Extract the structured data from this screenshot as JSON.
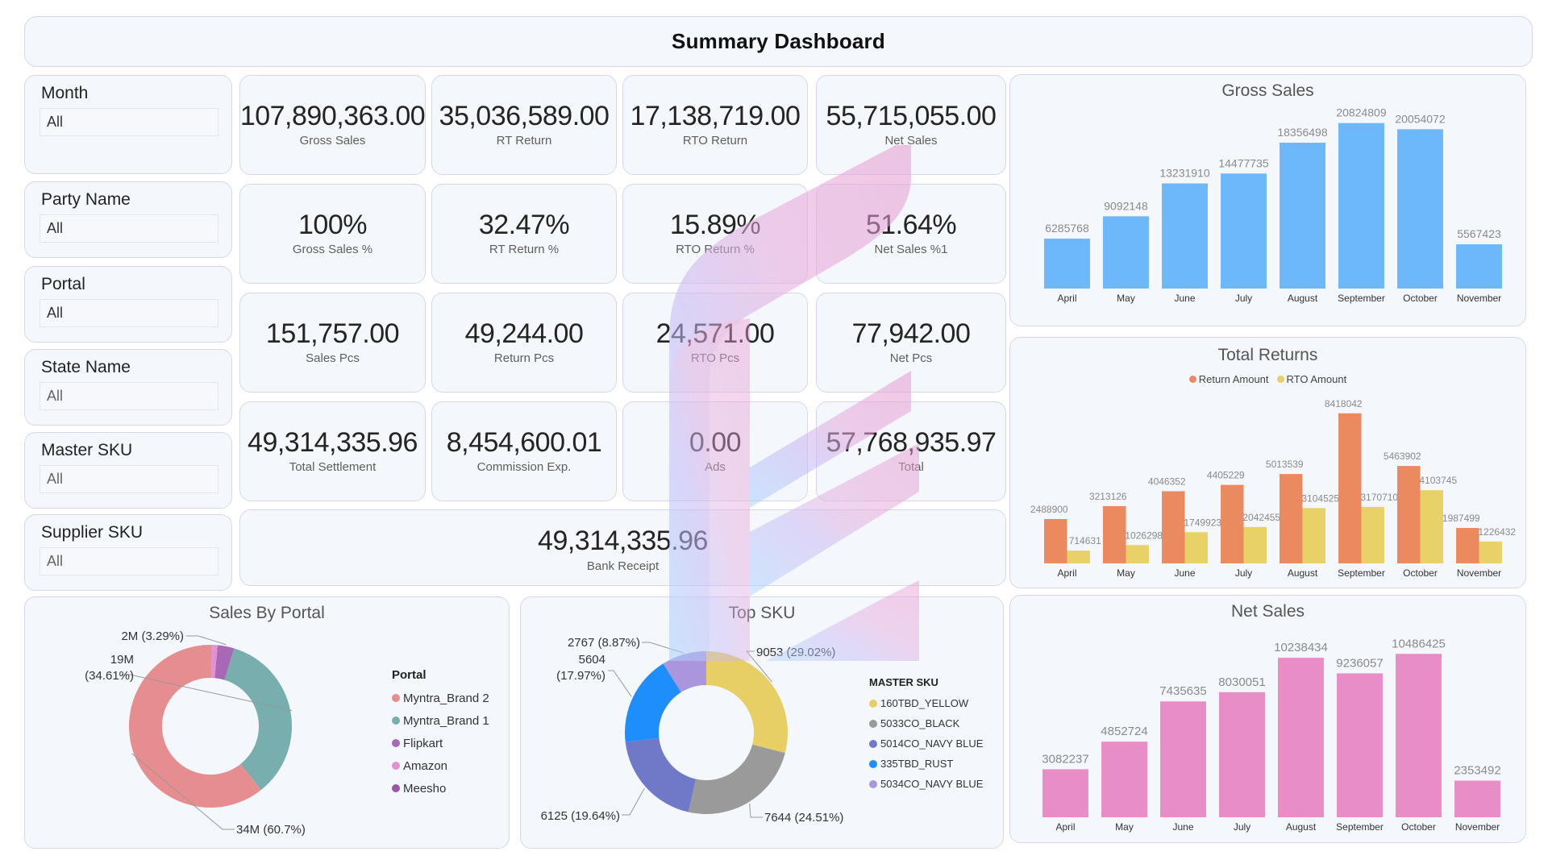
{
  "header": {
    "title": "Summary Dashboard"
  },
  "filters": [
    {
      "label": "Month",
      "value": "All"
    },
    {
      "label": "Party Name",
      "value": "All"
    },
    {
      "label": "Portal",
      "value": "All"
    },
    {
      "label": "State Name",
      "value": "All"
    },
    {
      "label": "Master SKU",
      "value": "All"
    },
    {
      "label": "Supplier SKU",
      "value": "All"
    }
  ],
  "kpis": [
    {
      "value": "107,890,363.00",
      "label": "Gross Sales"
    },
    {
      "value": "35,036,589.00",
      "label": "RT Return"
    },
    {
      "value": "17,138,719.00",
      "label": "RTO Return"
    },
    {
      "value": "55,715,055.00",
      "label": "Net Sales"
    },
    {
      "value": "100%",
      "label": "Gross Sales %"
    },
    {
      "value": "32.47%",
      "label": "RT Return %"
    },
    {
      "value": "15.89%",
      "label": "RTO Return %"
    },
    {
      "value": "51.64%",
      "label": "Net Sales %1"
    },
    {
      "value": "151,757.00",
      "label": "Sales Pcs"
    },
    {
      "value": "49,244.00",
      "label": "Return Pcs"
    },
    {
      "value": "24,571.00",
      "label": "RTO Pcs"
    },
    {
      "value": "77,942.00",
      "label": "Net Pcs"
    },
    {
      "value": "49,314,335.96",
      "label": "Total Settlement"
    },
    {
      "value": "8,454,600.01",
      "label": "Commission Exp."
    },
    {
      "value": "0.00",
      "label": "Ads"
    },
    {
      "value": "57,768,935.97",
      "label": "Total"
    }
  ],
  "bank_receipt": {
    "value": "49,314,335.96",
    "label": "Bank Receipt"
  },
  "chart_data": [
    {
      "id": "gross_sales",
      "type": "bar",
      "title": "Gross Sales",
      "categories": [
        "April",
        "May",
        "June",
        "July",
        "August",
        "September",
        "October",
        "November"
      ],
      "values": [
        6285768,
        9092148,
        13231910,
        14477735,
        18356498,
        20824809,
        20054072,
        5567423
      ],
      "color": "#6cb8fb",
      "xlabel": "",
      "ylabel": "",
      "ylim": [
        0,
        21000000
      ],
      "grid": false
    },
    {
      "id": "total_returns",
      "type": "bar",
      "title": "Total Returns",
      "categories": [
        "April",
        "May",
        "June",
        "July",
        "August",
        "September",
        "October",
        "November"
      ],
      "series": [
        {
          "name": "Return Amount",
          "color": "#eb895f",
          "values": [
            2488900,
            3213126,
            4046352,
            4405229,
            5013539,
            8418042,
            5463902,
            1987499
          ]
        },
        {
          "name": "RTO Amount",
          "color": "#e8d166",
          "values": [
            714631,
            1026298,
            1749923,
            2042455,
            3104525,
            3170710,
            4103745,
            1226432
          ]
        }
      ],
      "legend": "top-center",
      "ylim": [
        0,
        8500000
      ],
      "grid": false
    },
    {
      "id": "net_sales",
      "type": "bar",
      "title": "Net Sales",
      "categories": [
        "April",
        "May",
        "June",
        "July",
        "August",
        "September",
        "October",
        "November"
      ],
      "values": [
        3082237,
        4852724,
        7435635,
        8030051,
        10238434,
        9236057,
        10486425,
        2353492
      ],
      "color": "#e98dc6",
      "ylim": [
        0,
        10500000
      ],
      "grid": false
    },
    {
      "id": "sales_by_portal",
      "type": "pie",
      "donut": true,
      "title": "Sales By Portal",
      "legend_title": "Portal",
      "legend": "right",
      "slices": [
        {
          "name": "Myntra_Brand 2",
          "value": 60.7,
          "label": "34M (60.7%)",
          "color": "#e68d90"
        },
        {
          "name": "Myntra_Brand 1",
          "value": 34.61,
          "label": "19M (34.61%)",
          "color": "#78aeae"
        },
        {
          "name": "Flipkart",
          "value": 3.29,
          "label": "2M (3.29%)",
          "color": "#a768b5"
        },
        {
          "name": "Amazon",
          "value": 1.35,
          "label": "",
          "color": "#e591d0"
        },
        {
          "name": "Meesho",
          "value": 0.05,
          "label": "",
          "color": "#9c54a9"
        }
      ]
    },
    {
      "id": "top_sku",
      "type": "pie",
      "donut": true,
      "title": "Top SKU",
      "legend_title": "MASTER SKU",
      "legend": "right",
      "slices": [
        {
          "name": "160TBD_YELLOW",
          "value": 9053,
          "label": "9053 (29.02%)",
          "color": "#e8cf65"
        },
        {
          "name": "5033CO_BLACK",
          "value": 7644,
          "label": "7644 (24.51%)",
          "color": "#9a9a9a"
        },
        {
          "name": "5014CO_NAVY BLUE",
          "value": 6125,
          "label": "6125 (19.64%)",
          "color": "#6f79c8"
        },
        {
          "name": "335TBD_RUST",
          "value": 5604,
          "label": "5604 (17.97%)",
          "color": "#1e8efc"
        },
        {
          "name": "5034CO_NAVY BLUE",
          "value": 2767,
          "label": "2767 (8.87%)",
          "color": "#ab96dc"
        }
      ]
    }
  ]
}
